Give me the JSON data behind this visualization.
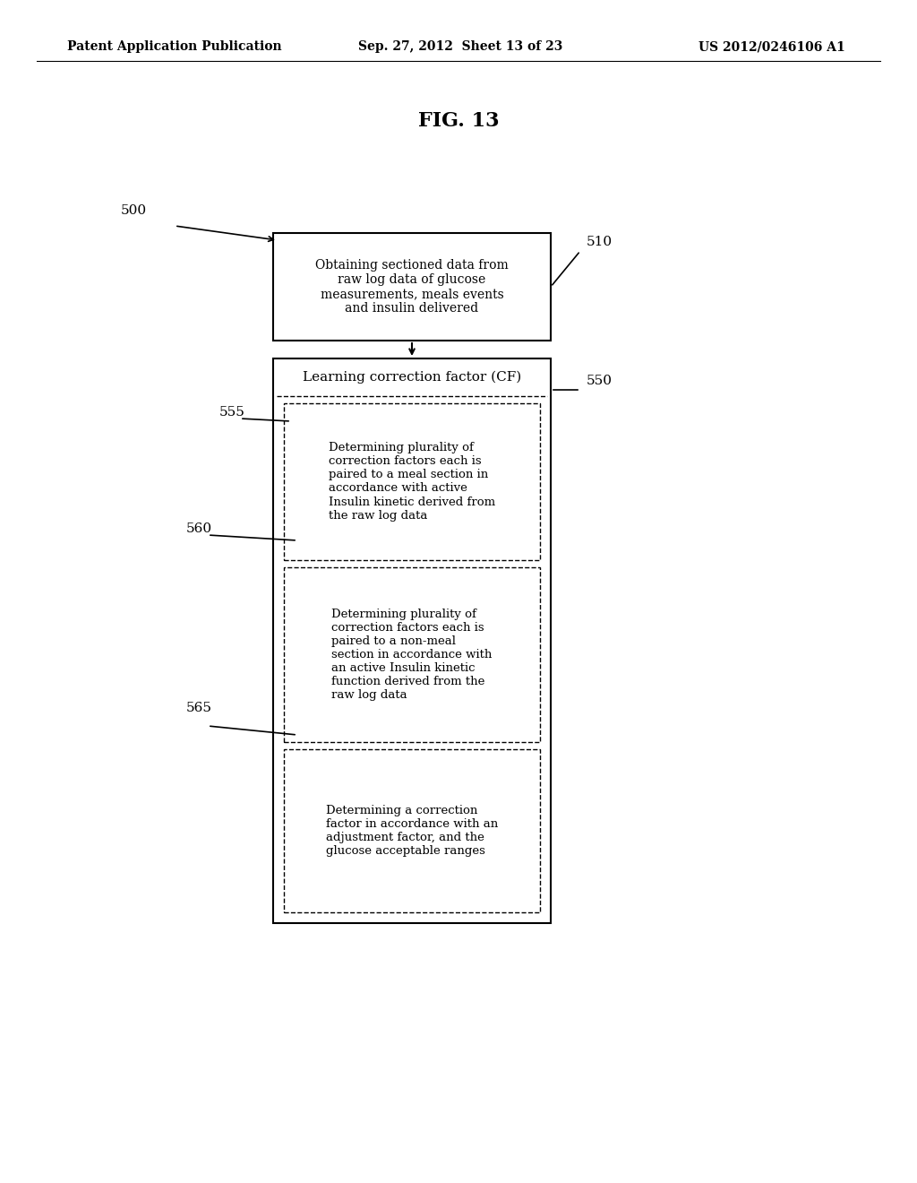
{
  "bg_color": "#ffffff",
  "header_left": "Patent Application Publication",
  "header_mid": "Sep. 27, 2012  Sheet 13 of 23",
  "header_right": "US 2012/0246106 A1",
  "fig_title": "FIG. 13",
  "label_500": "500",
  "label_510": "510",
  "label_550": "550",
  "label_555": "555",
  "label_560": "560",
  "label_565": "565",
  "box510_text": "Obtaining sectioned data from\nraw log data of glucose\nmeasurements, meals events\nand insulin delivered",
  "box550_header": "Learning correction factor (CF)",
  "box560_text": "Determining plurality of\ncorrection factors each is\npaired to a meal section in\naccordance with active\nInsulin kinetic derived from\nthe raw log data",
  "box565_text": "Determining plurality of\ncorrection factors each is\npaired to a non-meal\nsection in accordance with\nan active Insulin kinetic\nfunction derived from the\nraw log data",
  "box570_text": "Determining a correction\nfactor in accordance with an\nadjustment factor, and the\nglucose acceptable ranges"
}
